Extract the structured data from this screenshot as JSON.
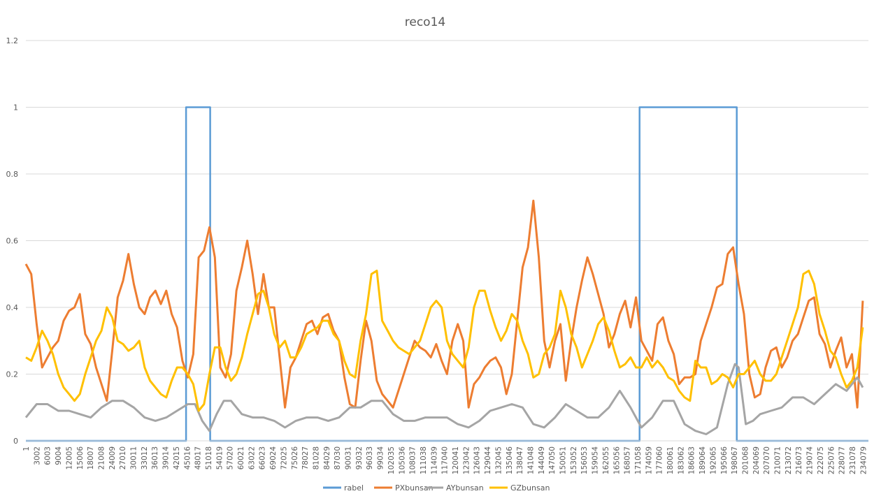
{
  "chart_data": {
    "type": "line",
    "title": "reco14",
    "xlabel": "",
    "ylabel": "",
    "ylim": [
      0,
      1.2
    ],
    "y_ticks": [
      "0",
      "0.2",
      "0.4",
      "0.6",
      "0.8",
      "1",
      "1.2"
    ],
    "x_range": [
      1,
      234079
    ],
    "x_ticks": [
      "1",
      "3002",
      "6003",
      "9004",
      "12005",
      "15006",
      "18007",
      "21008",
      "24009",
      "27010",
      "30011",
      "33012",
      "36013",
      "39014",
      "42015",
      "45016",
      "48017",
      "51018",
      "54019",
      "57020",
      "60021",
      "63022",
      "66023",
      "69024",
      "72025",
      "75026",
      "78027",
      "81028",
      "84029",
      "87030",
      "90031",
      "93032",
      "96033",
      "99034",
      "102035",
      "105036",
      "108037",
      "111038",
      "114039",
      "117040",
      "120041",
      "123042",
      "126043",
      "129044",
      "132045",
      "135046",
      "138047",
      "141048",
      "144049",
      "147050",
      "150051",
      "153052",
      "156053",
      "159054",
      "162055",
      "165056",
      "168057",
      "171058",
      "174059",
      "177060",
      "180061",
      "183062",
      "186063",
      "189064",
      "192065",
      "195066",
      "198067",
      "201068",
      "204069",
      "207070",
      "210071",
      "213072",
      "216073",
      "219074",
      "222075",
      "225076",
      "228077",
      "231078",
      "234079"
    ],
    "grid": "horizontal",
    "legend_position": "bottom",
    "series": [
      {
        "name": "rabel",
        "color": "#5B9BD5",
        "x": [
          1,
          44500,
          44500,
          51200,
          51200,
          170500,
          170500,
          197500,
          197500,
          234079
        ],
        "y": [
          0,
          0,
          1,
          1,
          0,
          0,
          1,
          1,
          0,
          0
        ]
      },
      {
        "name": "PXbunsan",
        "color": "#ED7D31",
        "x": [
          1,
          1500,
          3000,
          4500,
          6000,
          7500,
          9000,
          10500,
          12000,
          13500,
          15000,
          16500,
          18000,
          19500,
          21000,
          22500,
          24000,
          25500,
          27000,
          28500,
          30000,
          31500,
          33000,
          34500,
          36000,
          37500,
          39000,
          40500,
          42000,
          43500,
          45000,
          46500,
          48000,
          49500,
          51000,
          52500,
          54000,
          55500,
          57000,
          58500,
          60000,
          61500,
          63000,
          64500,
          66000,
          67500,
          69000,
          70500,
          72000,
          73500,
          75000,
          76500,
          78000,
          79500,
          81000,
          82500,
          84000,
          85500,
          87000,
          88500,
          90000,
          91500,
          93000,
          94500,
          96000,
          97500,
          99000,
          100500,
          102000,
          103500,
          105000,
          106500,
          108000,
          109500,
          111000,
          112500,
          114000,
          115500,
          117000,
          118500,
          120000,
          121500,
          123000,
          124500,
          126000,
          127500,
          129000,
          130500,
          132000,
          133500,
          135000,
          136500,
          138000,
          139500,
          141000,
          142500,
          144000,
          145500,
          147000,
          148500,
          150000,
          151500,
          153000,
          154500,
          156000,
          157500,
          159000,
          160500,
          162000,
          163500,
          165000,
          166500,
          168000,
          169500,
          171000,
          172500,
          174000,
          175500,
          177000,
          178500,
          180000,
          181500,
          183000,
          184500,
          186000,
          187500,
          189000,
          190500,
          192000,
          193500,
          195000,
          196500,
          198000,
          199500,
          201000,
          202500,
          204000,
          205500,
          207000,
          208500,
          210000,
          211500,
          213000,
          214500,
          216000,
          217500,
          219000,
          220500,
          222000,
          223500,
          225000,
          226500,
          228000,
          229500,
          231000,
          232500
        ],
        "y": [
          0.53,
          0.5,
          0.35,
          0.22,
          0.25,
          0.28,
          0.3,
          0.36,
          0.39,
          0.4,
          0.44,
          0.32,
          0.29,
          0.22,
          0.17,
          0.12,
          0.27,
          0.43,
          0.48,
          0.56,
          0.47,
          0.4,
          0.38,
          0.43,
          0.45,
          0.41,
          0.45,
          0.38,
          0.34,
          0.24,
          0.19,
          0.26,
          0.55,
          0.57,
          0.64,
          0.55,
          0.22,
          0.19,
          0.26,
          0.45,
          0.52,
          0.6,
          0.5,
          0.38,
          0.5,
          0.4,
          0.4,
          0.25,
          0.1,
          0.22,
          0.25,
          0.3,
          0.35,
          0.36,
          0.32,
          0.37,
          0.38,
          0.33,
          0.3,
          0.19,
          0.11,
          0.1,
          0.24,
          0.36,
          0.3,
          0.18,
          0.14,
          0.12,
          0.1,
          0.15,
          0.2,
          0.25,
          0.3,
          0.28,
          0.27,
          0.25,
          0.29,
          0.24,
          0.2,
          0.3,
          0.35,
          0.3,
          0.1,
          0.17,
          0.19,
          0.22,
          0.24,
          0.25,
          0.22,
          0.14,
          0.2,
          0.36,
          0.52,
          0.58,
          0.72,
          0.55,
          0.3,
          0.22,
          0.3,
          0.35,
          0.18,
          0.3,
          0.4,
          0.48,
          0.55,
          0.5,
          0.44,
          0.38,
          0.28,
          0.32,
          0.38,
          0.42,
          0.34,
          0.43,
          0.3,
          0.27,
          0.24,
          0.35,
          0.37,
          0.3,
          0.26,
          0.17,
          0.19,
          0.19,
          0.2,
          0.3,
          0.35,
          0.4,
          0.46,
          0.47,
          0.56,
          0.58,
          0.47,
          0.38,
          0.2,
          0.13,
          0.14,
          0.22,
          0.27,
          0.28,
          0.22,
          0.25,
          0.3,
          0.32,
          0.37,
          0.42,
          0.43,
          0.32,
          0.29,
          0.22,
          0.27,
          0.31,
          0.22,
          0.26,
          0.1,
          0.42
        ]
      },
      {
        "name": "AYbunsan",
        "color": "#A5A5A5",
        "x": [
          1,
          3000,
          6000,
          9000,
          12000,
          15000,
          18000,
          21000,
          24000,
          27000,
          30000,
          33000,
          36000,
          39000,
          42000,
          45000,
          47000,
          49000,
          51000,
          53000,
          55000,
          57000,
          60000,
          63000,
          66000,
          69000,
          72000,
          75000,
          78000,
          81000,
          84000,
          87000,
          90000,
          93000,
          96000,
          99000,
          102000,
          105000,
          108000,
          111000,
          114000,
          117000,
          120000,
          123000,
          126000,
          129000,
          132000,
          135000,
          138000,
          141000,
          144000,
          147000,
          150000,
          153000,
          156000,
          159000,
          162000,
          165000,
          168000,
          171000,
          174000,
          177000,
          180000,
          183000,
          186000,
          189000,
          192000,
          195000,
          197000,
          198000,
          200000,
          202000,
          204000,
          207000,
          210000,
          213000,
          216000,
          219000,
          222000,
          225000,
          228000,
          231000,
          232500
        ],
        "y": [
          0.07,
          0.11,
          0.11,
          0.09,
          0.09,
          0.08,
          0.07,
          0.1,
          0.12,
          0.12,
          0.1,
          0.07,
          0.06,
          0.07,
          0.09,
          0.11,
          0.11,
          0.06,
          0.03,
          0.08,
          0.12,
          0.12,
          0.08,
          0.07,
          0.07,
          0.06,
          0.04,
          0.06,
          0.07,
          0.07,
          0.06,
          0.07,
          0.1,
          0.1,
          0.12,
          0.12,
          0.08,
          0.06,
          0.06,
          0.07,
          0.07,
          0.07,
          0.05,
          0.04,
          0.06,
          0.09,
          0.1,
          0.11,
          0.1,
          0.05,
          0.04,
          0.07,
          0.11,
          0.09,
          0.07,
          0.07,
          0.1,
          0.15,
          0.1,
          0.04,
          0.07,
          0.12,
          0.12,
          0.05,
          0.03,
          0.02,
          0.04,
          0.17,
          0.23,
          0.22,
          0.05,
          0.06,
          0.08,
          0.09,
          0.1,
          0.13,
          0.13,
          0.11,
          0.14,
          0.17,
          0.15,
          0.19,
          0.16
        ]
      },
      {
        "name": "GZbunsan",
        "color": "#FFC000",
        "x": [
          1,
          1500,
          3000,
          4500,
          6000,
          7500,
          9000,
          10500,
          12000,
          13500,
          15000,
          16500,
          18000,
          19500,
          21000,
          22500,
          24000,
          25500,
          27000,
          28500,
          30000,
          31500,
          33000,
          34500,
          36000,
          37500,
          39000,
          40500,
          42000,
          43500,
          45000,
          46500,
          48000,
          49500,
          51000,
          52500,
          54000,
          55500,
          57000,
          58500,
          60000,
          61500,
          63000,
          64500,
          66000,
          67500,
          69000,
          70500,
          72000,
          73500,
          75000,
          76500,
          78000,
          79500,
          81000,
          82500,
          84000,
          85500,
          87000,
          88500,
          90000,
          91500,
          93000,
          94500,
          96000,
          97500,
          99000,
          100500,
          102000,
          103500,
          105000,
          106500,
          108000,
          109500,
          111000,
          112500,
          114000,
          115500,
          117000,
          118500,
          120000,
          121500,
          123000,
          124500,
          126000,
          127500,
          129000,
          130500,
          132000,
          133500,
          135000,
          136500,
          138000,
          139500,
          141000,
          142500,
          144000,
          145500,
          147000,
          148500,
          150000,
          151500,
          153000,
          154500,
          156000,
          157500,
          159000,
          160500,
          162000,
          163500,
          165000,
          166500,
          168000,
          169500,
          171000,
          172500,
          174000,
          175500,
          177000,
          178500,
          180000,
          181500,
          183000,
          184500,
          186000,
          187500,
          189000,
          190500,
          192000,
          193500,
          195000,
          196500,
          198000,
          199500,
          201000,
          202500,
          204000,
          205500,
          207000,
          208500,
          210000,
          211500,
          213000,
          214500,
          216000,
          217500,
          219000,
          220500,
          222000,
          223500,
          225000,
          226500,
          228000,
          229500,
          231000,
          232500
        ],
        "y": [
          0.25,
          0.24,
          0.28,
          0.33,
          0.3,
          0.26,
          0.2,
          0.16,
          0.14,
          0.12,
          0.14,
          0.2,
          0.25,
          0.3,
          0.33,
          0.4,
          0.37,
          0.3,
          0.29,
          0.27,
          0.28,
          0.3,
          0.22,
          0.18,
          0.16,
          0.14,
          0.13,
          0.18,
          0.22,
          0.22,
          0.2,
          0.17,
          0.09,
          0.11,
          0.2,
          0.28,
          0.28,
          0.22,
          0.18,
          0.2,
          0.25,
          0.32,
          0.38,
          0.44,
          0.45,
          0.4,
          0.32,
          0.28,
          0.3,
          0.25,
          0.25,
          0.28,
          0.32,
          0.33,
          0.34,
          0.36,
          0.36,
          0.32,
          0.3,
          0.24,
          0.2,
          0.19,
          0.3,
          0.38,
          0.5,
          0.51,
          0.36,
          0.33,
          0.3,
          0.28,
          0.27,
          0.26,
          0.28,
          0.3,
          0.35,
          0.4,
          0.42,
          0.4,
          0.3,
          0.26,
          0.24,
          0.22,
          0.28,
          0.4,
          0.45,
          0.45,
          0.39,
          0.34,
          0.3,
          0.33,
          0.38,
          0.36,
          0.3,
          0.26,
          0.19,
          0.2,
          0.26,
          0.28,
          0.32,
          0.45,
          0.4,
          0.32,
          0.28,
          0.22,
          0.26,
          0.3,
          0.35,
          0.37,
          0.33,
          0.27,
          0.22,
          0.23,
          0.25,
          0.22,
          0.22,
          0.25,
          0.22,
          0.24,
          0.22,
          0.19,
          0.18,
          0.15,
          0.13,
          0.12,
          0.24,
          0.22,
          0.22,
          0.17,
          0.18,
          0.2,
          0.19,
          0.16,
          0.2,
          0.2,
          0.22,
          0.24,
          0.2,
          0.18,
          0.18,
          0.2,
          0.25,
          0.3,
          0.35,
          0.4,
          0.5,
          0.51,
          0.47,
          0.38,
          0.33,
          0.27,
          0.25,
          0.2,
          0.16,
          0.18,
          0.22,
          0.34
        ]
      }
    ]
  }
}
